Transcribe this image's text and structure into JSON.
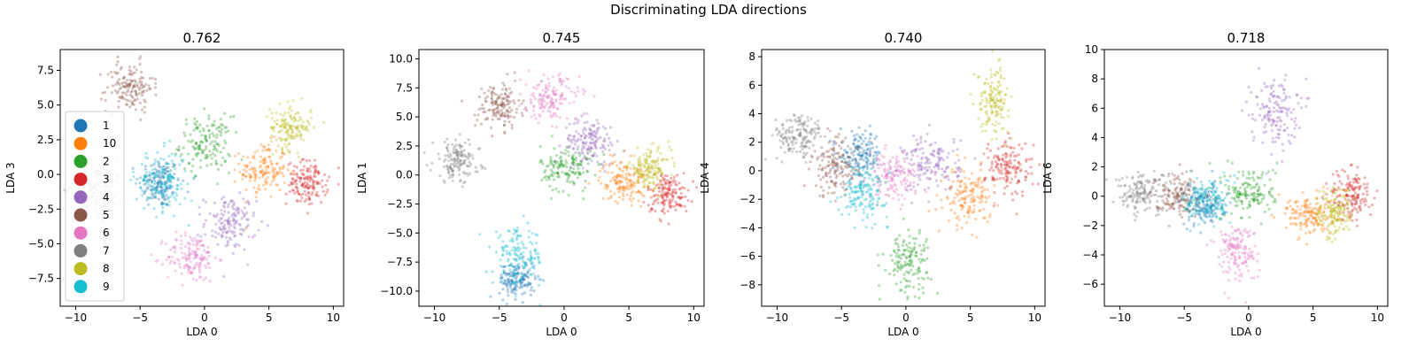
{
  "figure": {
    "suptitle": "Discriminating LDA directions"
  },
  "legend": {
    "placement": "lower-left of first panel",
    "entries": [
      {
        "label": "1",
        "color": "#1f77b4"
      },
      {
        "label": "10",
        "color": "#ff7f0e"
      },
      {
        "label": "2",
        "color": "#2ca02c"
      },
      {
        "label": "3",
        "color": "#d62728"
      },
      {
        "label": "4",
        "color": "#9467bd"
      },
      {
        "label": "5",
        "color": "#8c564b"
      },
      {
        "label": "6",
        "color": "#e377c2"
      },
      {
        "label": "7",
        "color": "#7f7f7f"
      },
      {
        "label": "8",
        "color": "#bcbd22"
      },
      {
        "label": "9",
        "color": "#17becf"
      }
    ]
  },
  "chart_data": [
    {
      "type": "scatter",
      "title": "0.762",
      "xlabel": "LDA 0",
      "ylabel": "LDA 3",
      "xlim": [
        -11.2,
        10.8
      ],
      "ylim": [
        -9.5,
        9.0
      ],
      "xticks": [
        -10,
        -5,
        0,
        5,
        10
      ],
      "yticks": [
        -7.5,
        -5.0,
        -2.5,
        0.0,
        2.5,
        5.0,
        7.5
      ],
      "ytick_labels": [
        "−7.5",
        "−5.0",
        "−2.5",
        "0.0",
        "2.5",
        "5.0",
        "7.5"
      ],
      "xtick_labels": [
        "−10",
        "−5",
        "0",
        "5",
        "10"
      ],
      "grid": false,
      "series": [
        {
          "name": "1",
          "color": "#1f77b4",
          "cx": -3.5,
          "cy": -0.6,
          "sx": 0.8,
          "sy": 0.9
        },
        {
          "name": "10",
          "color": "#ff7f0e",
          "cx": 4.6,
          "cy": 0.3,
          "sx": 0.9,
          "sy": 1.0
        },
        {
          "name": "2",
          "color": "#2ca02c",
          "cx": 0.1,
          "cy": 2.2,
          "sx": 1.0,
          "sy": 1.0
        },
        {
          "name": "3",
          "color": "#d62728",
          "cx": 8.0,
          "cy": -0.6,
          "sx": 0.8,
          "sy": 0.8
        },
        {
          "name": "4",
          "color": "#9467bd",
          "cx": 2.0,
          "cy": -3.5,
          "sx": 1.0,
          "sy": 1.0
        },
        {
          "name": "5",
          "color": "#8c564b",
          "cx": -5.8,
          "cy": 6.3,
          "sx": 0.9,
          "sy": 0.9
        },
        {
          "name": "6",
          "color": "#e377c2",
          "cx": -1.0,
          "cy": -6.0,
          "sx": 1.0,
          "sy": 0.9
        },
        {
          "name": "7",
          "color": "#7f7f7f",
          "cx": -8.2,
          "cy": -1.0,
          "sx": 1.0,
          "sy": 1.0
        },
        {
          "name": "8",
          "color": "#bcbd22",
          "cx": 6.7,
          "cy": 3.4,
          "sx": 0.8,
          "sy": 0.8
        },
        {
          "name": "9",
          "color": "#17becf",
          "cx": -3.3,
          "cy": -0.5,
          "sx": 1.0,
          "sy": 1.1
        }
      ]
    },
    {
      "type": "scatter",
      "title": "0.745",
      "xlabel": "LDA 0",
      "ylabel": "LDA 1",
      "xlim": [
        -11.2,
        10.8
      ],
      "ylim": [
        -11.3,
        10.8
      ],
      "xticks": [
        -10,
        -5,
        0,
        5,
        10
      ],
      "yticks": [
        -10.0,
        -7.5,
        -5.0,
        -2.5,
        0.0,
        2.5,
        5.0,
        7.5,
        10.0
      ],
      "ytick_labels": [
        "−10.0",
        "−7.5",
        "−5.0",
        "−2.5",
        "0.0",
        "2.5",
        "5.0",
        "7.5",
        "10.0"
      ],
      "xtick_labels": [
        "−10",
        "−5",
        "0",
        "5",
        "10"
      ],
      "grid": false,
      "series": [
        {
          "name": "1",
          "color": "#1f77b4",
          "cx": -3.6,
          "cy": -9.0,
          "sx": 0.7,
          "sy": 0.8
        },
        {
          "name": "10",
          "color": "#ff7f0e",
          "cx": 4.6,
          "cy": -0.5,
          "sx": 0.9,
          "sy": 0.9
        },
        {
          "name": "2",
          "color": "#2ca02c",
          "cx": 0.2,
          "cy": 0.6,
          "sx": 1.0,
          "sy": 1.0
        },
        {
          "name": "3",
          "color": "#d62728",
          "cx": 8.0,
          "cy": -1.6,
          "sx": 0.8,
          "sy": 0.9
        },
        {
          "name": "4",
          "color": "#9467bd",
          "cx": 2.0,
          "cy": 2.9,
          "sx": 1.0,
          "sy": 1.0
        },
        {
          "name": "5",
          "color": "#8c564b",
          "cx": -5.0,
          "cy": 5.9,
          "sx": 0.9,
          "sy": 1.0
        },
        {
          "name": "6",
          "color": "#e377c2",
          "cx": -1.0,
          "cy": 6.6,
          "sx": 1.1,
          "sy": 1.0
        },
        {
          "name": "7",
          "color": "#7f7f7f",
          "cx": -8.3,
          "cy": 1.2,
          "sx": 0.9,
          "sy": 0.9
        },
        {
          "name": "8",
          "color": "#bcbd22",
          "cx": 6.6,
          "cy": 0.6,
          "sx": 0.8,
          "sy": 0.8
        },
        {
          "name": "9",
          "color": "#17becf",
          "cx": -3.5,
          "cy": -7.1,
          "sx": 1.0,
          "sy": 1.2
        }
      ]
    },
    {
      "type": "scatter",
      "title": "0.740",
      "xlabel": "LDA 0",
      "ylabel": "LDA 4",
      "xlim": [
        -11.2,
        10.8
      ],
      "ylim": [
        -9.5,
        8.5
      ],
      "xticks": [
        -10,
        -5,
        0,
        5,
        10
      ],
      "yticks": [
        -8,
        -6,
        -4,
        -2,
        0,
        2,
        4,
        6,
        8
      ],
      "ytick_labels": [
        "−8",
        "−6",
        "−4",
        "−2",
        "0",
        "2",
        "4",
        "6",
        "8"
      ],
      "xtick_labels": [
        "−10",
        "−5",
        "0",
        "5",
        "10"
      ],
      "grid": false,
      "series": [
        {
          "name": "1",
          "color": "#1f77b4",
          "cx": -3.5,
          "cy": 1.1,
          "sx": 0.8,
          "sy": 0.8
        },
        {
          "name": "10",
          "color": "#ff7f0e",
          "cx": 4.8,
          "cy": -1.9,
          "sx": 0.9,
          "sy": 1.0
        },
        {
          "name": "2",
          "color": "#2ca02c",
          "cx": 0.1,
          "cy": -6.3,
          "sx": 0.9,
          "sy": 1.1
        },
        {
          "name": "3",
          "color": "#d62728",
          "cx": 8.0,
          "cy": 0.2,
          "sx": 0.9,
          "sy": 1.0
        },
        {
          "name": "4",
          "color": "#9467bd",
          "cx": 2.0,
          "cy": 0.5,
          "sx": 1.1,
          "sy": 1.0
        },
        {
          "name": "5",
          "color": "#8c564b",
          "cx": -5.5,
          "cy": 0.2,
          "sx": 0.9,
          "sy": 1.0
        },
        {
          "name": "6",
          "color": "#e377c2",
          "cx": -1.0,
          "cy": -0.4,
          "sx": 1.0,
          "sy": 0.8
        },
        {
          "name": "7",
          "color": "#7f7f7f",
          "cx": -8.3,
          "cy": 2.4,
          "sx": 1.0,
          "sy": 0.8
        },
        {
          "name": "8",
          "color": "#bcbd22",
          "cx": 6.8,
          "cy": 5.0,
          "sx": 0.6,
          "sy": 1.1
        },
        {
          "name": "9",
          "color": "#17becf",
          "cx": -3.2,
          "cy": -1.5,
          "sx": 0.9,
          "sy": 0.9
        }
      ]
    },
    {
      "type": "scatter",
      "title": "0.718",
      "xlabel": "LDA 0",
      "ylabel": "LDA 6",
      "xlim": [
        -11.2,
        10.8
      ],
      "ylim": [
        -7.5,
        10.0
      ],
      "xticks": [
        -10,
        -5,
        0,
        5,
        10
      ],
      "yticks": [
        -6,
        -4,
        -2,
        0,
        2,
        4,
        6,
        8,
        10
      ],
      "ytick_labels": [
        "−6",
        "−4",
        "−2",
        "0",
        "2",
        "4",
        "6",
        "8",
        "10"
      ],
      "xtick_labels": [
        "−10",
        "−5",
        "0",
        "5",
        "10"
      ],
      "grid": false,
      "series": [
        {
          "name": "1",
          "color": "#1f77b4",
          "cx": -3.4,
          "cy": -0.6,
          "sx": 0.8,
          "sy": 0.7
        },
        {
          "name": "10",
          "color": "#ff7f0e",
          "cx": 4.6,
          "cy": -1.3,
          "sx": 0.9,
          "sy": 0.7
        },
        {
          "name": "2",
          "color": "#2ca02c",
          "cx": 0.2,
          "cy": 0.3,
          "sx": 1.0,
          "sy": 0.9
        },
        {
          "name": "3",
          "color": "#d62728",
          "cx": 8.0,
          "cy": 0.1,
          "sx": 0.8,
          "sy": 0.9
        },
        {
          "name": "4",
          "color": "#9467bd",
          "cx": 2.0,
          "cy": 5.8,
          "sx": 0.9,
          "sy": 1.2
        },
        {
          "name": "5",
          "color": "#8c564b",
          "cx": -5.5,
          "cy": 0.1,
          "sx": 0.9,
          "sy": 0.7
        },
        {
          "name": "6",
          "color": "#e377c2",
          "cx": -1.0,
          "cy": -3.8,
          "sx": 0.8,
          "sy": 1.0
        },
        {
          "name": "7",
          "color": "#7f7f7f",
          "cx": -8.3,
          "cy": 0.3,
          "sx": 1.1,
          "sy": 0.7
        },
        {
          "name": "8",
          "color": "#bcbd22",
          "cx": 6.7,
          "cy": -1.2,
          "sx": 0.7,
          "sy": 0.9
        },
        {
          "name": "9",
          "color": "#17becf",
          "cx": -3.2,
          "cy": -0.3,
          "sx": 0.9,
          "sy": 0.8
        }
      ]
    }
  ]
}
